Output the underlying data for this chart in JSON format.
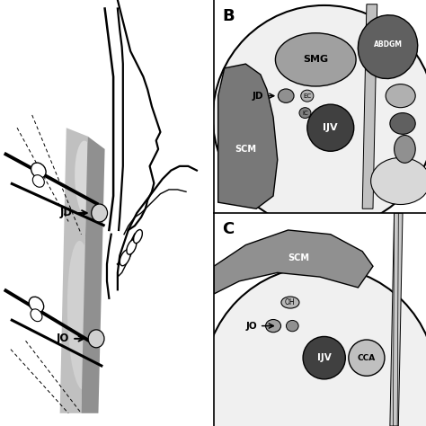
{
  "bg_color": "#ffffff",
  "panel_B_label": "B",
  "panel_C_label": "C",
  "label_JD_left": "JD",
  "label_JO_left": "JO",
  "label_SMG": "SMG",
  "label_JD_B": "JD",
  "label_SCM_B": "SCM",
  "label_IJV_B": "IJV",
  "label_ABDGM": "ABDGM",
  "label_EC_B": "EC",
  "label_IC_B": "IC",
  "label_SCM_C": "SCM",
  "label_JO_C": "JO",
  "label_IJV_C": "IJV",
  "label_CCA_C": "CCA",
  "label_OH_C": "OH",
  "col_dark": "#555555",
  "col_mid": "#808080",
  "col_light": "#aaaaaa",
  "col_lighter": "#c8c8c8",
  "col_lightest": "#e0e0e0",
  "col_darkest": "#333333",
  "col_scm": "#787878",
  "col_smg": "#a0a0a0",
  "col_abdgm": "#606060",
  "col_ijv": "#404040"
}
